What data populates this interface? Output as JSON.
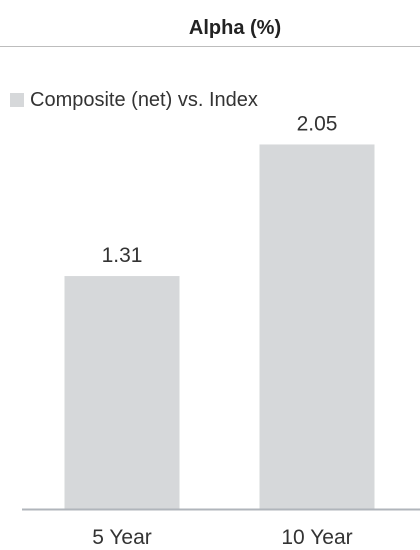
{
  "chart_data": {
    "type": "bar",
    "title": "Alpha (%)",
    "categories": [
      "5 Year",
      "10 Year"
    ],
    "series": [
      {
        "name": "Composite (net) vs. Index",
        "values": [
          1.31,
          2.05
        ],
        "color": "#d6d8da"
      }
    ],
    "data_labels": [
      "1.31",
      "2.05"
    ],
    "ylim": [
      0,
      2.3
    ],
    "grid": false,
    "legend_position": "top-left",
    "axis_color": "#b0b5bb"
  }
}
